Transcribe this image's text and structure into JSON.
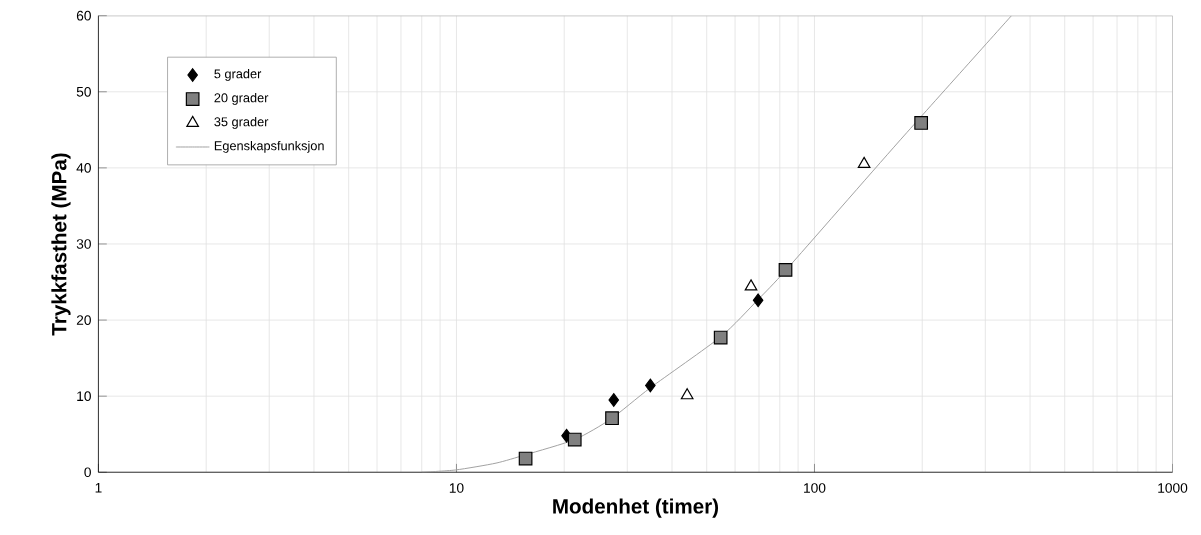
{
  "chart_data": {
    "type": "scatter",
    "xlabel": "Modenhet (timer)",
    "ylabel": "Trykkfasthet (MPa)",
    "log": "x",
    "grid": true,
    "legend": "top left",
    "xlim": [
      1,
      1000
    ],
    "xticks": [
      1,
      10,
      100,
      1000
    ],
    "ylim": [
      0,
      60
    ],
    "yticks": [
      0,
      10,
      20,
      30,
      40,
      50,
      60
    ],
    "series": [
      {
        "name": "5 grader",
        "marker": "diamond",
        "color": "#000000",
        "x": [
          20.3,
          27.5,
          34.8,
          69.6
        ],
        "values": [
          4.8,
          9.5,
          11.4,
          22.6
        ]
      },
      {
        "name": "20 grader",
        "marker": "square",
        "color": "#808080",
        "x": [
          15.6,
          21.4,
          27.2,
          54.7,
          83,
          198.6
        ],
        "values": [
          1.8,
          4.3,
          7.1,
          17.7,
          26.6,
          45.9
        ]
      },
      {
        "name": "35 grader",
        "marker": "triangle",
        "color": "#ffffff",
        "x": [
          44.1,
          66.5,
          137.6
        ],
        "values": [
          10.1,
          24.4,
          40.5
        ]
      },
      {
        "name": "Egenskapsfunksjon",
        "type": "line",
        "marker": "none",
        "color": "#a0a0a0",
        "x": [
          8.0,
          9.95,
          12.9,
          15.6,
          21.4,
          27.0,
          34.8,
          54.7,
          69.6,
          84.1,
          171.6,
          355
        ],
        "values": [
          0,
          0.3,
          1.2,
          2.3,
          4.3,
          7.0,
          11.1,
          17.8,
          22.7,
          26.8,
          43.4,
          60
        ]
      }
    ]
  }
}
